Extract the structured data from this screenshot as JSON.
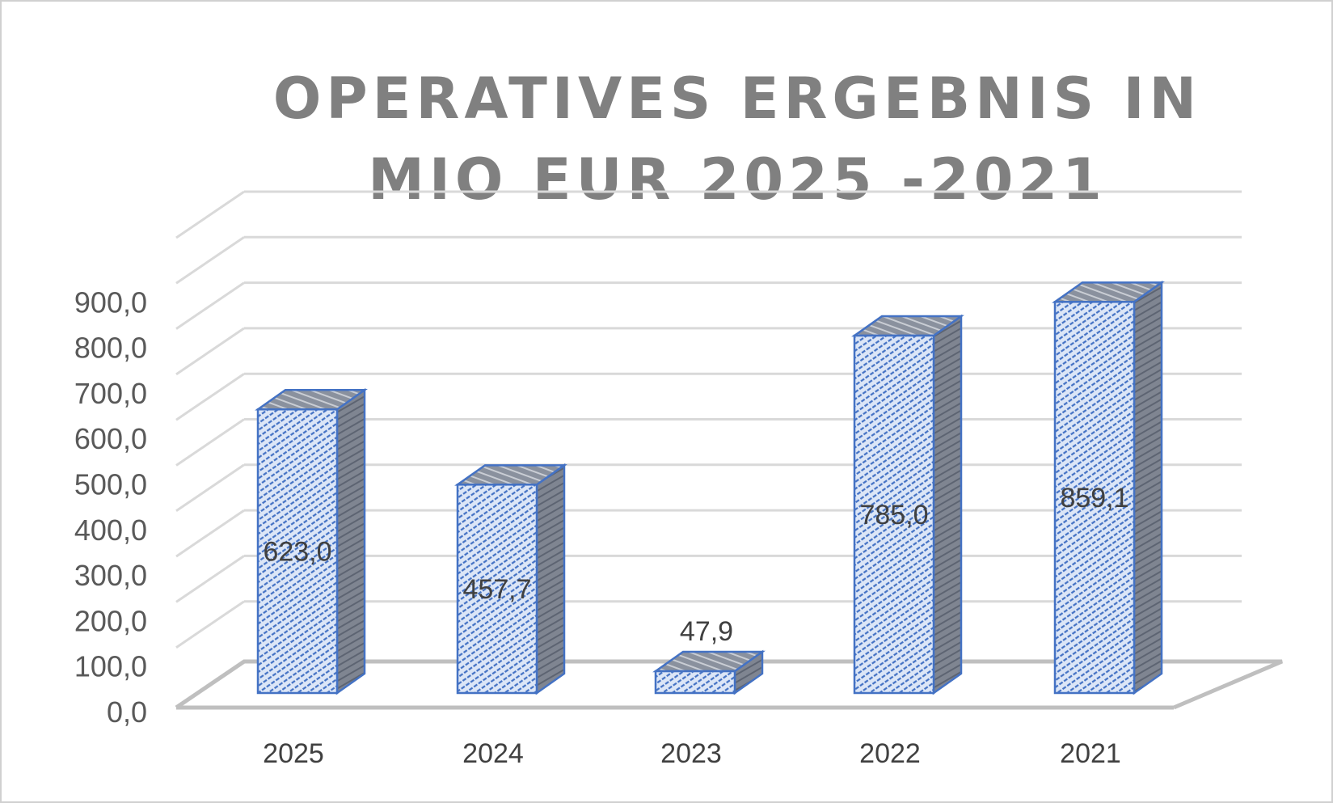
{
  "chart_data": {
    "type": "bar",
    "title": "OPERATIVES ERGEBNIS IN MIO EUR 2025 -2021",
    "categories": [
      "2025",
      "2024",
      "2023",
      "2022",
      "2021"
    ],
    "values": [
      623.0,
      457.7,
      47.9,
      785.0,
      859.1
    ],
    "value_labels": [
      "623,0",
      "457,7",
      "47,9",
      "785,0",
      "859,1"
    ],
    "y_ticks": [
      "0,0",
      "100,0",
      "200,0",
      "300,0",
      "400,0",
      "500,0",
      "600,0",
      "700,0",
      "800,0",
      "900,0"
    ],
    "ylim": [
      0,
      1000
    ],
    "xlabel": "",
    "ylabel": "",
    "grid": true,
    "legend": "none",
    "style": "3d-clustered-column",
    "colors": {
      "bar_fill": "#dce6f7",
      "bar_hatch": "#4472c4",
      "bar_edge": "#4472c4",
      "bar_side": "#7f8591",
      "gridline": "#d9d9d9",
      "floor": "#bfbfbf",
      "title": "#808080"
    }
  }
}
